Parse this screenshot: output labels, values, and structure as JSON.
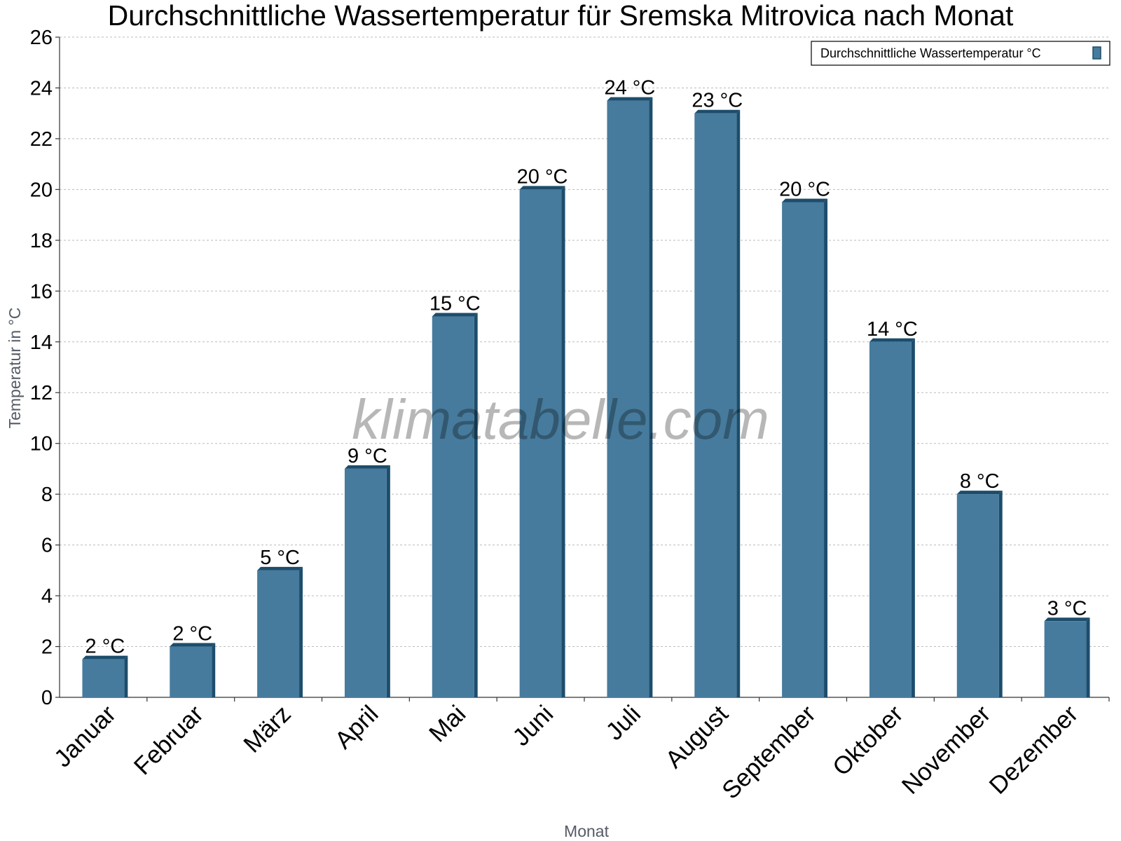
{
  "chart_data": {
    "type": "bar",
    "title": "Durchschnittliche Wassertemperatur für Sremska Mitrovica nach Monat",
    "xlabel": "Monat",
    "ylabel": "Temperatur in °C",
    "ylim": [
      0,
      26
    ],
    "yticks": [
      "0",
      "2",
      "4",
      "6",
      "8",
      "10",
      "12",
      "14",
      "16",
      "18",
      "20",
      "22",
      "24",
      "26"
    ],
    "grid": true,
    "legend_position": "top-right",
    "categories": [
      "Januar",
      "Februar",
      "März",
      "April",
      "Mai",
      "Juni",
      "Juli",
      "August",
      "September",
      "Oktober",
      "November",
      "Dezember"
    ],
    "series": [
      {
        "name": "Durchschnittliche Wassertemperatur °C",
        "values": [
          1.5,
          2,
          5,
          9,
          15,
          20,
          23.5,
          23,
          19.5,
          14,
          8,
          3
        ],
        "labels": [
          "2 °C",
          "2 °C",
          "5 °C",
          "9 °C",
          "15 °C",
          "20 °C",
          "24 °C",
          "23 °C",
          "20 °C",
          "14 °C",
          "8 °C",
          "3 °C"
        ]
      }
    ]
  },
  "watermark": "klimatabelle.com",
  "colors": {
    "bar": "#467b9d",
    "bar_dark": "#1d4d6c",
    "grid": "#bbbbbb",
    "axis": "#333333"
  }
}
